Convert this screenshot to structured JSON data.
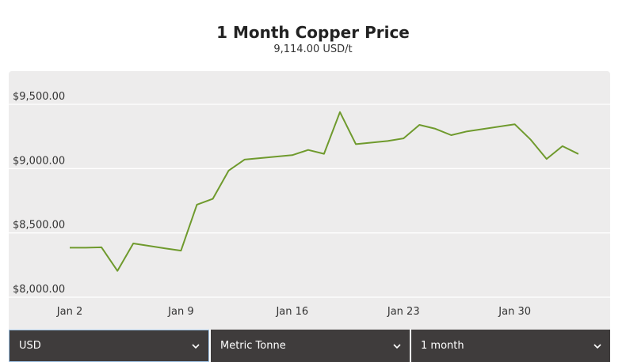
{
  "title": "1 Month Copper Price",
  "subtitle": "9,114.00 USD/t",
  "controls": {
    "currency": "USD",
    "unit": "Metric Tonne",
    "period": "1 month"
  },
  "chart_data": {
    "type": "line",
    "title": "1 Month Copper Price",
    "subtitle": "9,114.00 USD/t",
    "xlabel": "",
    "ylabel": "",
    "ylim": [
      8000,
      9500
    ],
    "y_ticks": [
      8000,
      8500,
      9000,
      9500
    ],
    "y_tick_labels": [
      "$8,000.00",
      "$8,500.00",
      "$9,000.00",
      "$9,500.00"
    ],
    "x_ticks": [
      "2024-01-02",
      "2024-01-09",
      "2024-01-16",
      "2024-01-23",
      "2024-01-30"
    ],
    "x_tick_labels": [
      "Jan 2",
      "Jan 9",
      "Jan 16",
      "Jan 23",
      "Jan 30"
    ],
    "x_range": [
      "2024-01-02",
      "2024-02-05"
    ],
    "grid": true,
    "line_color": "#6f9a2d",
    "series": [
      {
        "x": [
          "2024-01-02",
          "2024-01-03",
          "2024-01-04",
          "2024-01-05",
          "2024-01-06",
          "2024-01-08",
          "2024-01-09",
          "2024-01-10",
          "2024-01-11",
          "2024-01-12",
          "2024-01-13",
          "2024-01-16",
          "2024-01-17",
          "2024-01-18",
          "2024-01-19",
          "2024-01-20",
          "2024-01-22",
          "2024-01-23",
          "2024-01-24",
          "2024-01-25",
          "2024-01-26",
          "2024-01-27",
          "2024-01-30",
          "2024-01-31",
          "2024-02-01",
          "2024-02-02",
          "2024-02-03"
        ],
        "values": [
          8385,
          8385,
          8388,
          8205,
          8418,
          8380,
          8362,
          8720,
          8765,
          8985,
          9070,
          9105,
          9145,
          9115,
          9440,
          9190,
          9215,
          9235,
          9340,
          9310,
          9260,
          9290,
          9345,
          9225,
          9075,
          9175,
          9114
        ]
      }
    ]
  }
}
